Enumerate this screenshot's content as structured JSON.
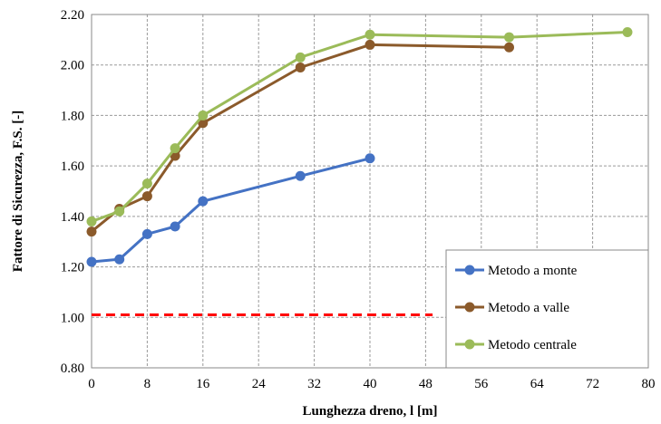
{
  "chart_data": {
    "type": "line",
    "xlabel": "Lunghezza dreno, l [m]",
    "ylabel": "Fattore di Sicurezza, F.S. [-]",
    "xlim": [
      0,
      80
    ],
    "ylim": [
      0.8,
      2.2
    ],
    "x_ticks": [
      "0",
      "8",
      "16",
      "24",
      "32",
      "40",
      "48",
      "56",
      "64",
      "72",
      "80"
    ],
    "y_ticks": [
      "0.80",
      "1.00",
      "1.20",
      "1.40",
      "1.60",
      "1.80",
      "2.00",
      "2.20"
    ],
    "grid": true,
    "legend_position": "bottom-right",
    "series": [
      {
        "name": "Metodo a monte",
        "color": "#4472C4",
        "x": [
          0,
          4,
          8,
          12,
          16,
          30,
          40
        ],
        "y": [
          1.22,
          1.23,
          1.33,
          1.36,
          1.46,
          1.56,
          1.63
        ]
      },
      {
        "name": "Metodo a valle",
        "color": "#8B5A2B",
        "x": [
          0,
          4,
          8,
          12,
          16,
          30,
          40,
          60
        ],
        "y": [
          1.34,
          1.43,
          1.48,
          1.64,
          1.77,
          1.99,
          2.08,
          2.07
        ]
      },
      {
        "name": "Metodo centrale",
        "color": "#9BBB59",
        "x": [
          0,
          4,
          8,
          12,
          16,
          30,
          40,
          60,
          77
        ],
        "y": [
          1.38,
          1.42,
          1.53,
          1.67,
          1.8,
          2.03,
          2.12,
          2.11,
          2.13
        ]
      }
    ],
    "reference_line": {
      "y": 1.01,
      "x": [
        0,
        49
      ],
      "color": "#FF0000",
      "style": "dashed"
    }
  }
}
